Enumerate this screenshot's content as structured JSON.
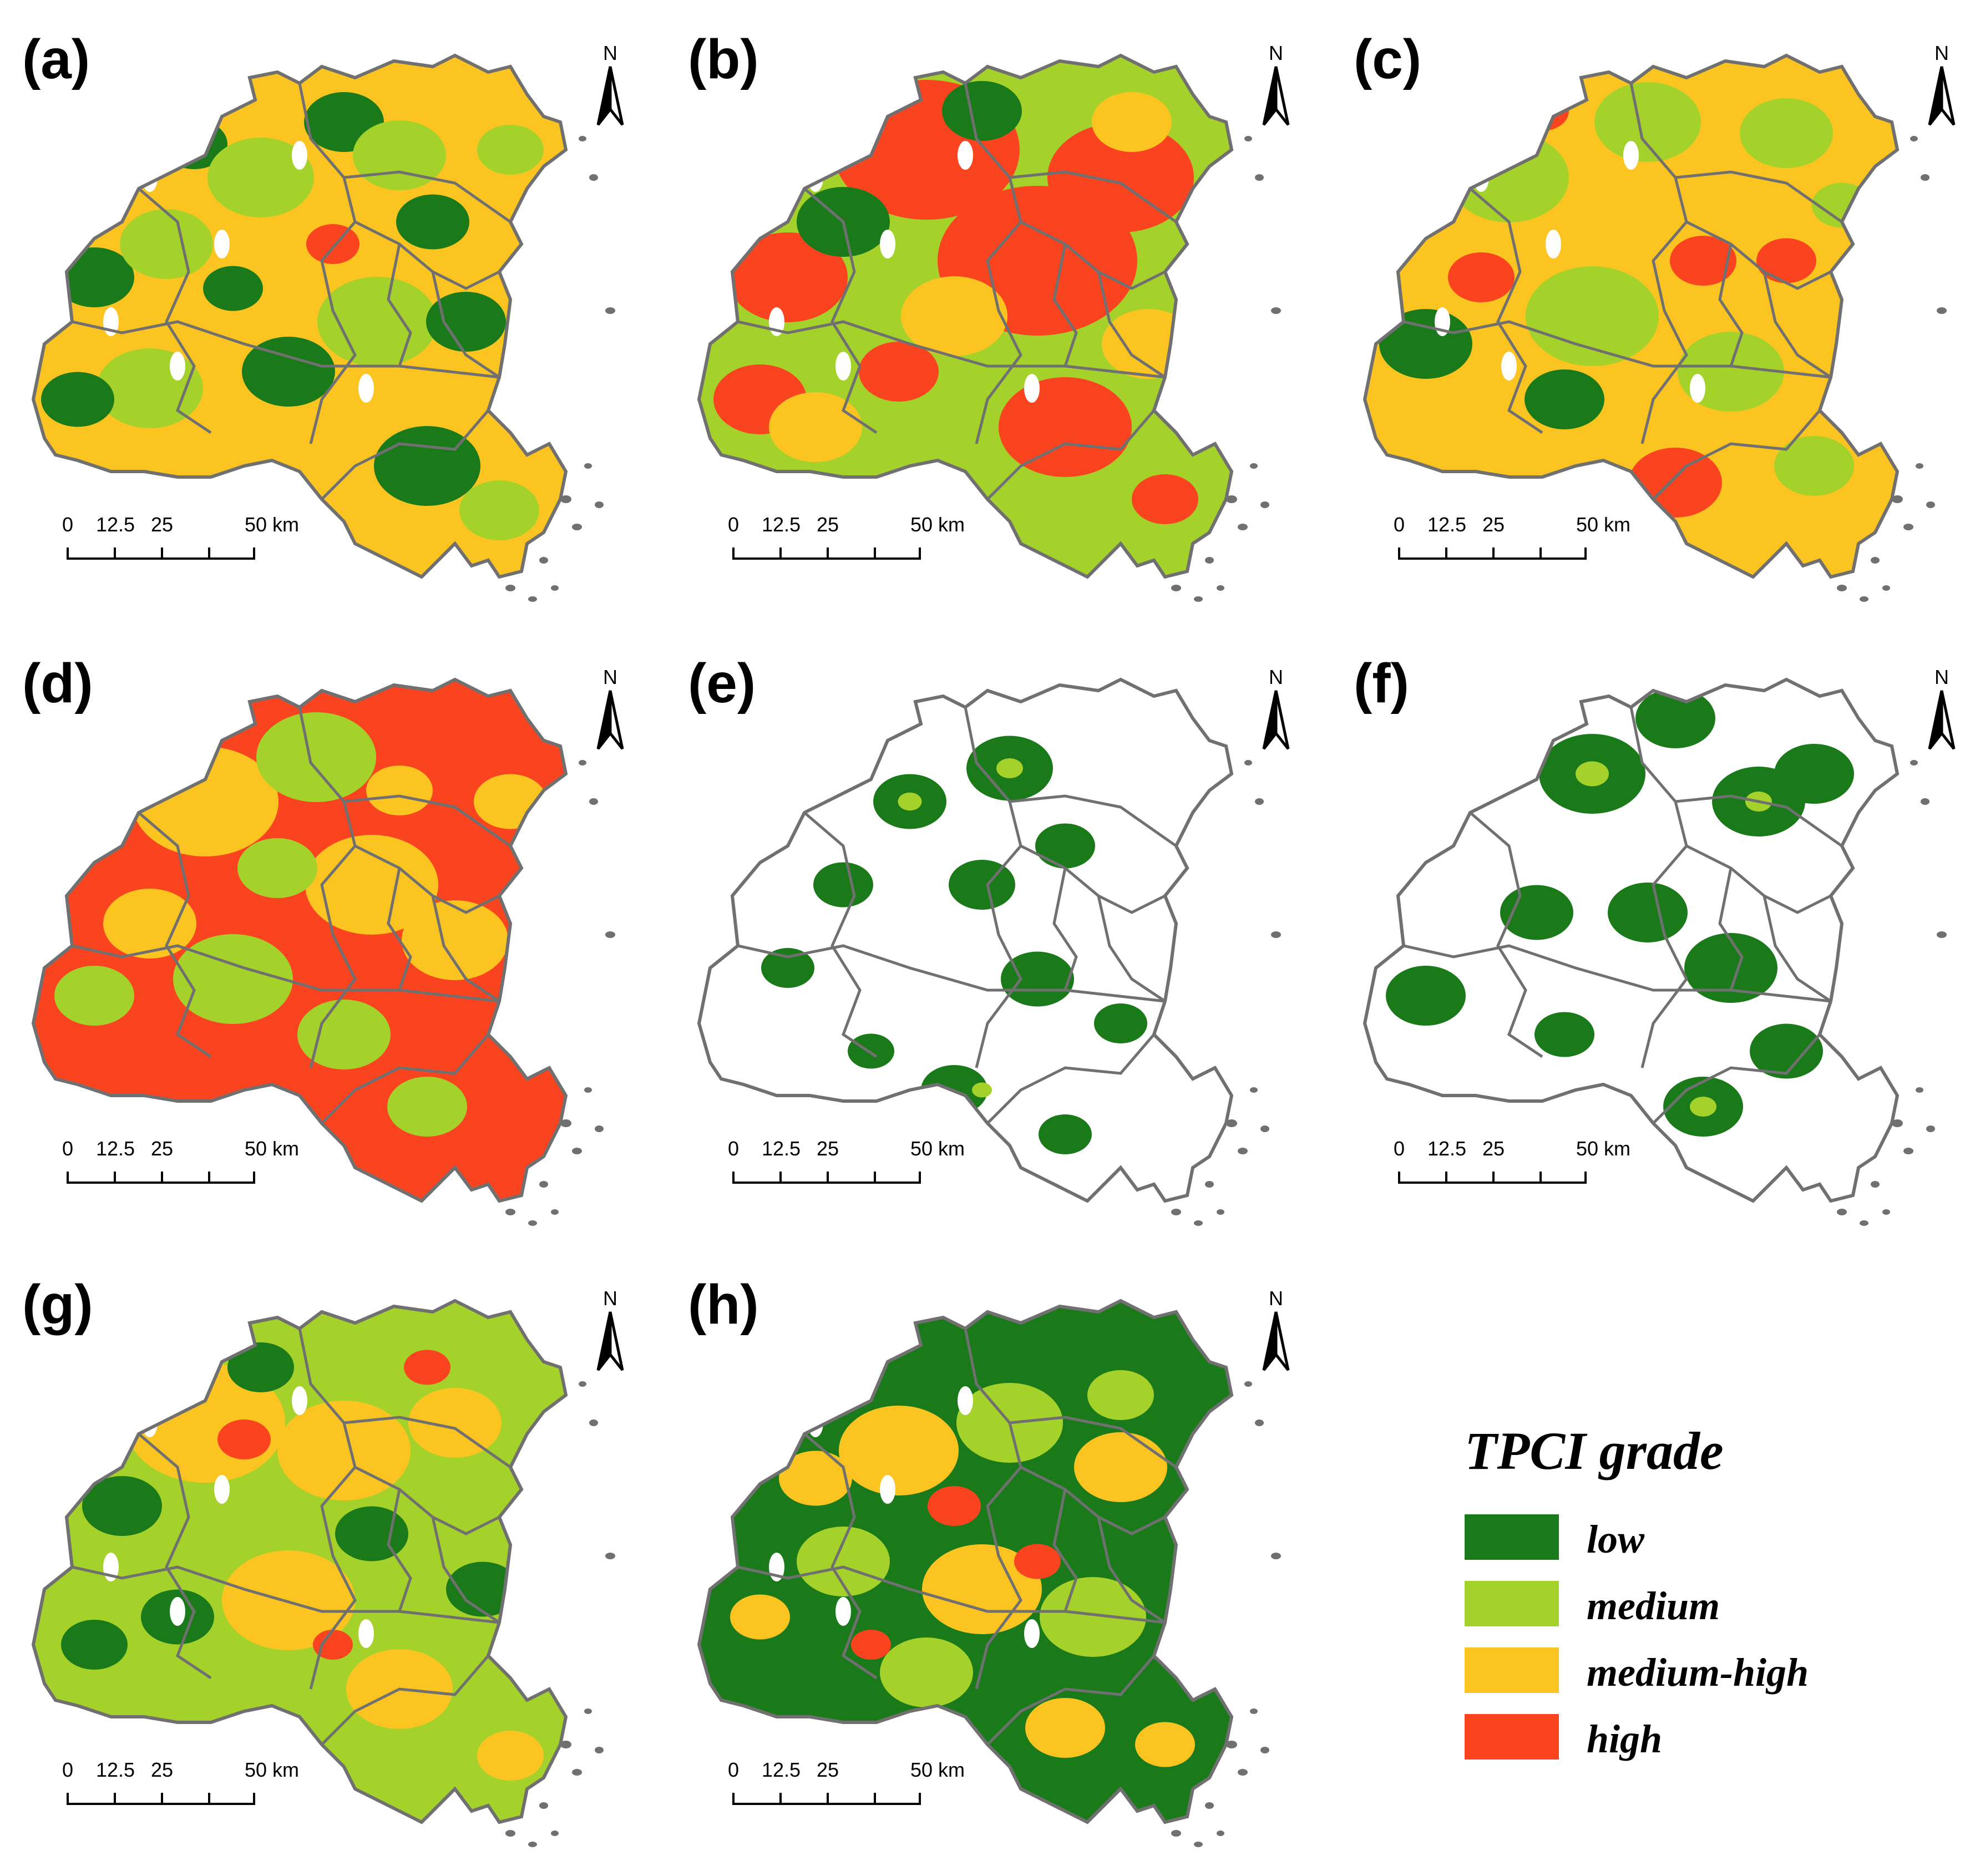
{
  "panels": [
    {
      "label": "(a)",
      "pattern": "mixed-a"
    },
    {
      "label": "(b)",
      "pattern": "high-b"
    },
    {
      "label": "(c)",
      "pattern": "medhigh-c"
    },
    {
      "label": "(d)",
      "pattern": "high-d"
    },
    {
      "label": "(e)",
      "pattern": "sparse-e"
    },
    {
      "label": "(f)",
      "pattern": "sparse-f"
    },
    {
      "label": "(g)",
      "pattern": "mixed-g"
    },
    {
      "label": "(h)",
      "pattern": "mixed-h"
    }
  ],
  "north_label": "N",
  "scalebar": {
    "ticks": [
      "0",
      "12.5",
      "25",
      "50 km"
    ]
  },
  "legend": {
    "title": "TPCI grade",
    "items": [
      {
        "label": "low",
        "color": "#1a7a1a"
      },
      {
        "label": "medium",
        "color": "#a5d22a"
      },
      {
        "label": "medium-high",
        "color": "#fbc421"
      },
      {
        "label": "high",
        "color": "#f9441f"
      }
    ]
  },
  "colors": {
    "boundary": "#707070",
    "background": "#ffffff"
  },
  "icons": {
    "north_arrow": "north-arrow-icon"
  }
}
